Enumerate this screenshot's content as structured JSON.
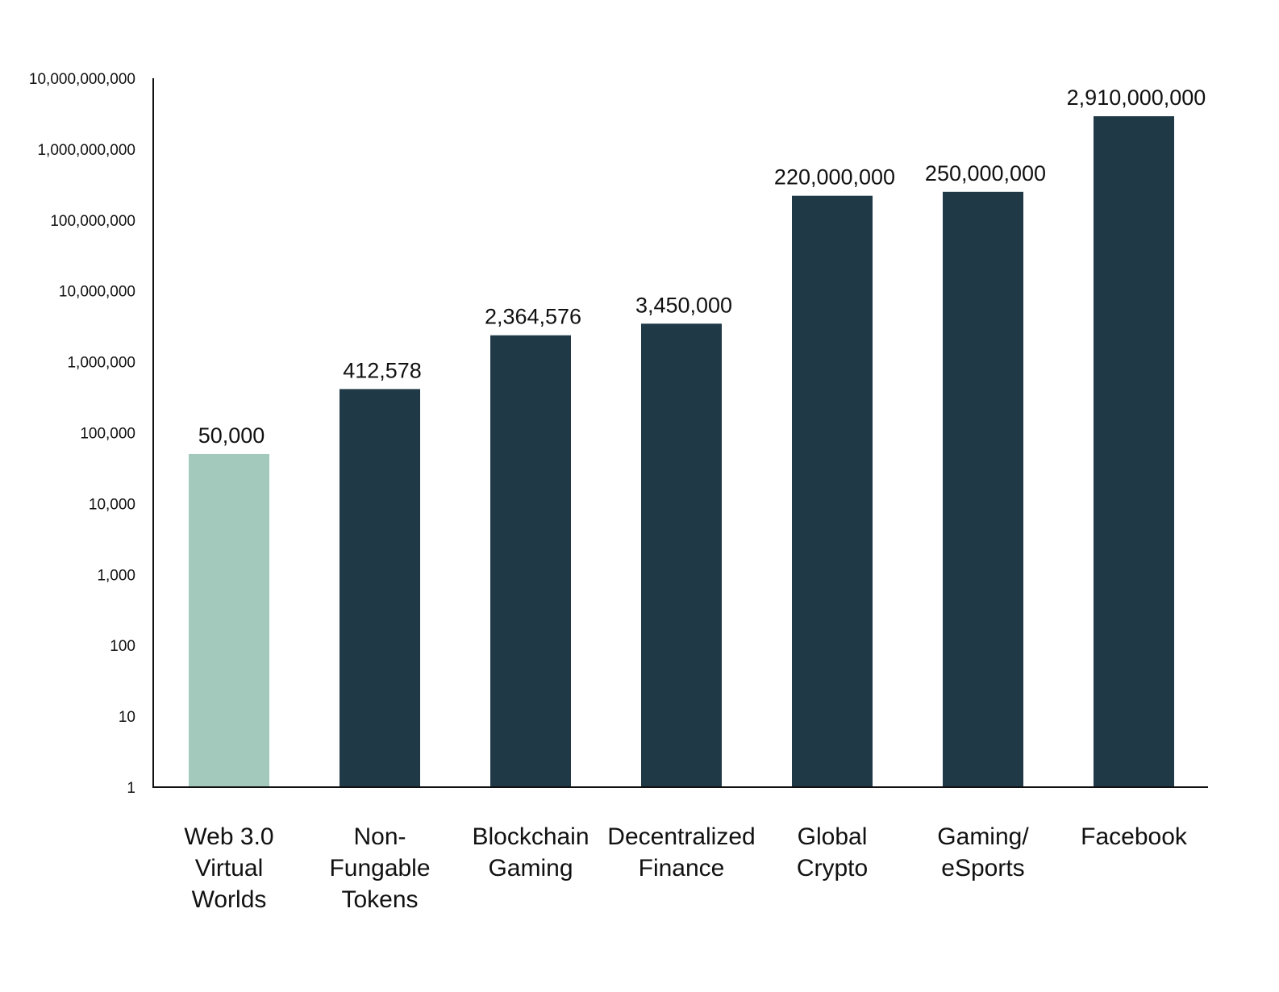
{
  "chart_data": {
    "type": "bar",
    "title": "",
    "xlabel": "",
    "ylabel": "",
    "yscale": "log",
    "ylim": [
      1,
      10000000000
    ],
    "categories": [
      [
        "Web 3.0",
        "Virtual",
        "Worlds"
      ],
      [
        "Non-",
        "Fungable",
        "Tokens"
      ],
      [
        "Blockchain",
        "Gaming"
      ],
      [
        "Decentralized",
        "Finance"
      ],
      [
        "Global",
        "Crypto"
      ],
      [
        "Gaming/",
        "eSports"
      ],
      [
        "Facebook"
      ]
    ],
    "values": [
      50000,
      412578,
      2364576,
      3450000,
      220000000,
      250000000,
      2910000000
    ],
    "value_labels": [
      "50,000",
      "412,578",
      "2,364,576",
      "3,450,000",
      "220,000,000",
      "250,000,000",
      "2,910,000,000"
    ],
    "yticks": [
      {
        "value": 1,
        "label": "1"
      },
      {
        "value": 10,
        "label": "10"
      },
      {
        "value": 100,
        "label": "100"
      },
      {
        "value": 1000,
        "label": "1,000"
      },
      {
        "value": 10000,
        "label": "10,000"
      },
      {
        "value": 100000,
        "label": "100,000"
      },
      {
        "value": 1000000,
        "label": "1,000,000"
      },
      {
        "value": 10000000,
        "label": "10,000,000"
      },
      {
        "value": 100000000,
        "label": "100,000,000"
      },
      {
        "value": 1000000000,
        "label": "1,000,000,000"
      },
      {
        "value": 10000000000,
        "label": "10,000,000,000"
      }
    ],
    "bar_colors": [
      "#a3c9bc",
      "#203947",
      "#203947",
      "#203947",
      "#203947",
      "#203947",
      "#203947"
    ],
    "axis_color": "#111111",
    "text_color": "#111111"
  }
}
